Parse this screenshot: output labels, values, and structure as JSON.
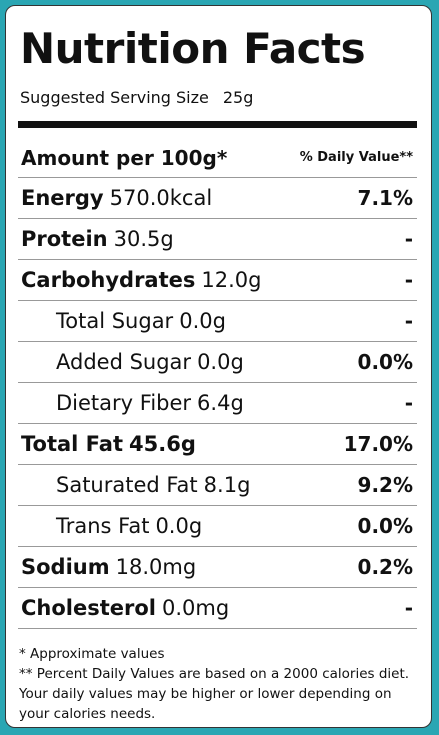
{
  "header": {
    "title": "Nutrition Facts",
    "serving_label": "Suggested Serving Size",
    "serving_size": "25g"
  },
  "table": {
    "amount_header": "Amount per 100g*",
    "dv_header": "% Daily Value**",
    "rows": [
      {
        "label": "Energy",
        "amount": "570.0kcal",
        "daily_value": "7.1%"
      },
      {
        "label": "Protein",
        "amount": "30.5g",
        "daily_value": "-"
      },
      {
        "label": "Carbohydrates",
        "amount": "12.0g",
        "daily_value": "-"
      },
      {
        "label": "Total Sugar",
        "amount": "0.0g",
        "daily_value": "-"
      },
      {
        "label": "Added Sugar",
        "amount": "0.0g",
        "daily_value": "0.0%"
      },
      {
        "label": "Dietary Fiber",
        "amount": "6.4g",
        "daily_value": "-"
      },
      {
        "label": "Total Fat",
        "amount": "45.6g",
        "daily_value": "17.0%"
      },
      {
        "label": "Saturated Fat",
        "amount": "8.1g",
        "daily_value": "9.2%"
      },
      {
        "label": "Trans Fat",
        "amount": "0.0g",
        "daily_value": "0.0%"
      },
      {
        "label": "Sodium",
        "amount": "18.0mg",
        "daily_value": "0.2%"
      },
      {
        "label": "Cholesterol",
        "amount": "0.0mg",
        "daily_value": "-"
      }
    ]
  },
  "footnotes": [
    "* Approximate values",
    "** Percent Daily Values are based on a 2000 calories diet. Your daily values may be higher or lower depending on your calories needs."
  ]
}
